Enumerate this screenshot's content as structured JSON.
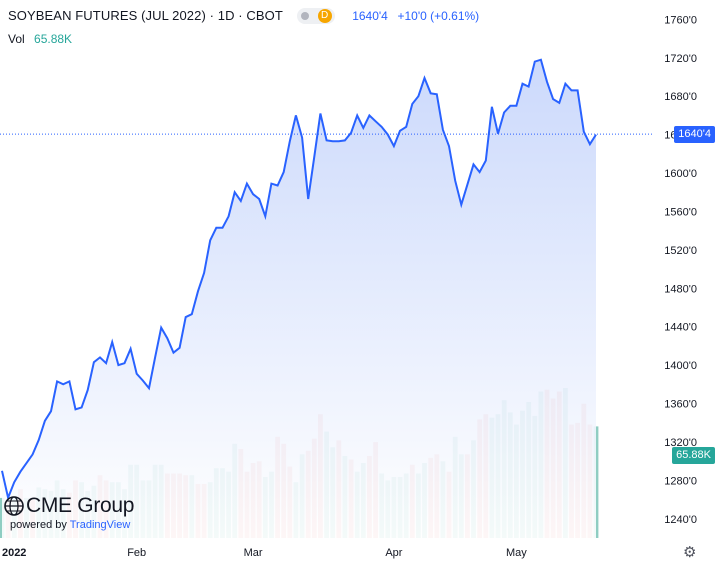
{
  "header": {
    "title": "SOYBEAN FUTURES (JUL 2022) · 1D · CBOT",
    "status_badge": "D",
    "last_price": "1640'4",
    "change": "+10'0 (+0.61%)"
  },
  "volume_legend": {
    "label": "Vol",
    "value": "65.88K"
  },
  "price_badge": "1640'4",
  "volume_badge": "65.88K",
  "branding": {
    "logo_text": "CME Group",
    "powered_by": "powered by",
    "tradingview": "TradingView"
  },
  "colors": {
    "line": "#2962ff",
    "area_top": "#c6d5fb",
    "area_bottom": "#ffffff",
    "volume_up": "#8fcdc2",
    "volume_down": "#efa3a1",
    "volume_badge": "#26a69a",
    "price_badge": "#2962ff",
    "axis_text": "#131722",
    "grid": "#eceff3"
  },
  "icons": {
    "settings": "gear-icon"
  },
  "chart_data": {
    "type": "area",
    "title": "SOYBEAN FUTURES (JUL 2022)",
    "xlabel": "",
    "ylabel": "",
    "x_tick_labels": [
      "2022",
      "Feb",
      "Mar",
      "Apr",
      "May"
    ],
    "x_tick_dates": [
      "2022-01-03",
      "2022-02-01",
      "2022-03-01",
      "2022-04-01",
      "2022-05-02"
    ],
    "y_ticks": [
      "1760'0",
      "1720'0",
      "1680'0",
      "1640'0",
      "1600'0",
      "1560'0",
      "1520'0",
      "1480'0",
      "1440'0",
      "1400'0",
      "1360'0",
      "1320'0",
      "1280'0",
      "1240'0"
    ],
    "ylim": [
      1220,
      1776
    ],
    "grid": false,
    "last_price": 1640.5,
    "series": [
      {
        "name": "Price",
        "values": [
          [
            "2021-12-30",
            1290
          ],
          [
            "2021-12-31",
            1262
          ],
          [
            "2022-01-03",
            1278
          ],
          [
            "2022-01-04",
            1289
          ],
          [
            "2022-01-05",
            1298
          ],
          [
            "2022-01-06",
            1307
          ],
          [
            "2022-01-07",
            1322
          ],
          [
            "2022-01-10",
            1342
          ],
          [
            "2022-01-11",
            1352
          ],
          [
            "2022-01-12",
            1383
          ],
          [
            "2022-01-13",
            1380
          ],
          [
            "2022-01-14",
            1383
          ],
          [
            "2022-01-18",
            1354
          ],
          [
            "2022-01-19",
            1356
          ],
          [
            "2022-01-20",
            1374
          ],
          [
            "2022-01-21",
            1403
          ],
          [
            "2022-01-24",
            1408
          ],
          [
            "2022-01-25",
            1402
          ],
          [
            "2022-01-26",
            1424
          ],
          [
            "2022-01-27",
            1400
          ],
          [
            "2022-01-28",
            1402
          ],
          [
            "2022-01-31",
            1417
          ],
          [
            "2022-02-01",
            1391
          ],
          [
            "2022-02-02",
            1384
          ],
          [
            "2022-02-03",
            1376
          ],
          [
            "2022-02-04",
            1408
          ],
          [
            "2022-02-07",
            1439
          ],
          [
            "2022-02-08",
            1428
          ],
          [
            "2022-02-09",
            1413
          ],
          [
            "2022-02-10",
            1418
          ],
          [
            "2022-02-11",
            1450
          ],
          [
            "2022-02-14",
            1453
          ],
          [
            "2022-02-15",
            1477
          ],
          [
            "2022-02-16",
            1496
          ],
          [
            "2022-02-17",
            1530
          ],
          [
            "2022-02-18",
            1543
          ],
          [
            "2022-02-22",
            1543
          ],
          [
            "2022-02-23",
            1555
          ],
          [
            "2022-02-24",
            1580
          ],
          [
            "2022-02-25",
            1571
          ],
          [
            "2022-02-28",
            1589
          ],
          [
            "2022-03-01",
            1578
          ],
          [
            "2022-03-02",
            1573
          ],
          [
            "2022-03-03",
            1555
          ],
          [
            "2022-03-04",
            1589
          ],
          [
            "2022-03-07",
            1587
          ],
          [
            "2022-03-08",
            1601
          ],
          [
            "2022-03-09",
            1633
          ],
          [
            "2022-03-10",
            1660
          ],
          [
            "2022-03-11",
            1637
          ],
          [
            "2022-03-14",
            1573
          ],
          [
            "2022-03-15",
            1617
          ],
          [
            "2022-03-16",
            1662
          ],
          [
            "2022-03-17",
            1634
          ],
          [
            "2022-03-18",
            1633
          ],
          [
            "2022-03-21",
            1633
          ],
          [
            "2022-03-22",
            1634
          ],
          [
            "2022-03-23",
            1642
          ],
          [
            "2022-03-24",
            1660
          ],
          [
            "2022-03-25",
            1647
          ],
          [
            "2022-03-28",
            1660
          ],
          [
            "2022-03-29",
            1654
          ],
          [
            "2022-03-30",
            1648
          ],
          [
            "2022-03-31",
            1640
          ],
          [
            "2022-04-01",
            1628
          ],
          [
            "2022-04-04",
            1644
          ],
          [
            "2022-04-05",
            1648
          ],
          [
            "2022-04-06",
            1672
          ],
          [
            "2022-04-07",
            1680
          ],
          [
            "2022-04-08",
            1699
          ],
          [
            "2022-04-11",
            1683
          ],
          [
            "2022-04-12",
            1682
          ],
          [
            "2022-04-13",
            1645
          ],
          [
            "2022-04-14",
            1628
          ],
          [
            "2022-04-18",
            1592
          ],
          [
            "2022-04-19",
            1567
          ],
          [
            "2022-04-20",
            1588
          ],
          [
            "2022-04-21",
            1609
          ],
          [
            "2022-04-22",
            1601
          ],
          [
            "2022-04-25",
            1613
          ],
          [
            "2022-04-26",
            1669
          ],
          [
            "2022-04-27",
            1641
          ],
          [
            "2022-04-28",
            1663
          ],
          [
            "2022-04-29",
            1670
          ],
          [
            "2022-05-02",
            1670
          ],
          [
            "2022-05-03",
            1693
          ],
          [
            "2022-05-04",
            1690
          ],
          [
            "2022-05-05",
            1716
          ],
          [
            "2022-05-06",
            1718
          ],
          [
            "2022-05-09",
            1695
          ],
          [
            "2022-05-10",
            1677
          ],
          [
            "2022-05-11",
            1673
          ],
          [
            "2022-05-12",
            1693
          ],
          [
            "2022-05-13",
            1686
          ],
          [
            "2022-05-16",
            1686
          ],
          [
            "2022-05-17",
            1643
          ],
          [
            "2022-05-18",
            1630
          ],
          [
            "2022-05-19",
            1640
          ]
        ]
      },
      {
        "name": "Vol",
        "values": [
          [
            1,
            "up",
            23
          ],
          [
            2,
            "down",
            21
          ],
          [
            3,
            "up",
            23
          ],
          [
            4,
            "down",
            28
          ],
          [
            5,
            "up",
            23
          ],
          [
            6,
            "down",
            22
          ],
          [
            7,
            "up",
            29
          ],
          [
            8,
            "up",
            28
          ],
          [
            9,
            "up",
            27
          ],
          [
            10,
            "up",
            33
          ],
          [
            11,
            "up",
            28
          ],
          [
            12,
            "down",
            26
          ],
          [
            13,
            "down",
            33
          ],
          [
            14,
            "up",
            32
          ],
          [
            15,
            "up",
            27
          ],
          [
            16,
            "up",
            30
          ],
          [
            17,
            "down",
            36
          ],
          [
            18,
            "down",
            33
          ],
          [
            19,
            "up",
            32
          ],
          [
            20,
            "up",
            32
          ],
          [
            21,
            "up",
            28
          ],
          [
            22,
            "up",
            42
          ],
          [
            23,
            "up",
            42
          ],
          [
            24,
            "up",
            33
          ],
          [
            25,
            "up",
            33
          ],
          [
            26,
            "up",
            42
          ],
          [
            27,
            "up",
            42
          ],
          [
            28,
            "down",
            37
          ],
          [
            29,
            "down",
            37
          ],
          [
            30,
            "down",
            37
          ],
          [
            31,
            "down",
            36
          ],
          [
            32,
            "up",
            36
          ],
          [
            33,
            "down",
            31
          ],
          [
            34,
            "down",
            31
          ],
          [
            35,
            "up",
            32
          ],
          [
            36,
            "up",
            40
          ],
          [
            37,
            "up",
            40
          ],
          [
            38,
            "up",
            38
          ],
          [
            39,
            "up",
            54
          ],
          [
            40,
            "down",
            51
          ],
          [
            41,
            "down",
            38
          ],
          [
            42,
            "down",
            43
          ],
          [
            43,
            "down",
            44
          ],
          [
            44,
            "up",
            35
          ],
          [
            45,
            "up",
            38
          ],
          [
            46,
            "down",
            58
          ],
          [
            47,
            "down",
            54
          ],
          [
            48,
            "down",
            41
          ],
          [
            49,
            "up",
            32
          ],
          [
            50,
            "up",
            48
          ],
          [
            51,
            "down",
            50
          ],
          [
            52,
            "down",
            57
          ],
          [
            53,
            "down",
            71
          ],
          [
            54,
            "up",
            61
          ],
          [
            55,
            "up",
            52
          ],
          [
            56,
            "down",
            56
          ],
          [
            57,
            "up",
            47
          ],
          [
            58,
            "down",
            45
          ],
          [
            59,
            "up",
            38
          ],
          [
            60,
            "up",
            43
          ],
          [
            61,
            "down",
            47
          ],
          [
            62,
            "down",
            55
          ],
          [
            63,
            "up",
            37
          ],
          [
            64,
            "up",
            33
          ],
          [
            65,
            "up",
            35
          ],
          [
            66,
            "up",
            35
          ],
          [
            67,
            "up",
            37
          ],
          [
            68,
            "down",
            42
          ],
          [
            69,
            "up",
            37
          ],
          [
            70,
            "up",
            43
          ],
          [
            71,
            "down",
            46
          ],
          [
            72,
            "down",
            48
          ],
          [
            73,
            "up",
            44
          ],
          [
            74,
            "down",
            38
          ],
          [
            75,
            "up",
            58
          ],
          [
            76,
            "up",
            48
          ],
          [
            77,
            "down",
            48
          ],
          [
            78,
            "up",
            56
          ],
          [
            79,
            "down",
            68
          ],
          [
            80,
            "down",
            71
          ],
          [
            81,
            "up",
            69
          ],
          [
            82,
            "up",
            71
          ],
          [
            83,
            "up",
            79
          ],
          [
            84,
            "up",
            72
          ],
          [
            85,
            "up",
            65
          ],
          [
            86,
            "up",
            73
          ],
          [
            87,
            "up",
            78
          ],
          [
            88,
            "up",
            70
          ],
          [
            89,
            "up",
            84
          ],
          [
            90,
            "down",
            85
          ],
          [
            91,
            "down",
            80
          ],
          [
            92,
            "down",
            84
          ],
          [
            93,
            "up",
            86
          ],
          [
            94,
            "down",
            65
          ],
          [
            95,
            "down",
            66
          ],
          [
            96,
            "down",
            77
          ],
          [
            97,
            "down",
            65
          ],
          [
            98,
            "up",
            64
          ]
        ]
      }
    ]
  }
}
